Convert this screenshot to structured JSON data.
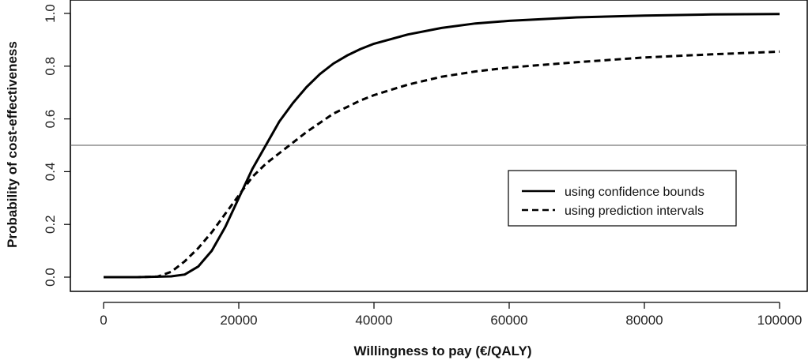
{
  "chart_data": {
    "type": "line",
    "title": "",
    "xlabel": "Willingness to pay (€/QALY)",
    "ylabel": "Probability of cost-effectiveness",
    "xlim": [
      0,
      100000
    ],
    "ylim": [
      0,
      1
    ],
    "xticks": [
      0,
      20000,
      40000,
      60000,
      80000,
      100000
    ],
    "yticks": [
      0.0,
      0.2,
      0.4,
      0.6,
      0.8,
      1.0
    ],
    "xtick_labels": [
      "0",
      "20000",
      "40000",
      "60000",
      "80000",
      "100000"
    ],
    "ytick_labels": [
      "0.0",
      "0.2",
      "0.4",
      "0.6",
      "0.8",
      "1.0"
    ],
    "grid": false,
    "legend_position": "center-right",
    "reference_line": {
      "y": 0.5,
      "color": "#aaaaaa"
    },
    "series": [
      {
        "name": "using confidence bounds",
        "style": "solid",
        "color": "#000000",
        "x": [
          0,
          5000,
          10000,
          12000,
          14000,
          16000,
          18000,
          20000,
          22000,
          24000,
          26000,
          28000,
          30000,
          32000,
          34000,
          36000,
          38000,
          40000,
          45000,
          50000,
          55000,
          60000,
          70000,
          80000,
          90000,
          100000
        ],
        "y": [
          0.0,
          0.0,
          0.003,
          0.01,
          0.04,
          0.1,
          0.19,
          0.3,
          0.41,
          0.5,
          0.59,
          0.66,
          0.72,
          0.77,
          0.81,
          0.84,
          0.865,
          0.885,
          0.92,
          0.945,
          0.962,
          0.972,
          0.985,
          0.992,
          0.996,
          0.998
        ]
      },
      {
        "name": "using prediction intervals",
        "style": "dashed",
        "color": "#000000",
        "x": [
          0,
          5000,
          8000,
          10000,
          12000,
          14000,
          16000,
          18000,
          20000,
          22000,
          24000,
          26000,
          28000,
          30000,
          32000,
          34000,
          36000,
          38000,
          40000,
          45000,
          50000,
          55000,
          60000,
          70000,
          80000,
          90000,
          100000
        ],
        "y": [
          0.0,
          0.0,
          0.002,
          0.02,
          0.06,
          0.11,
          0.17,
          0.24,
          0.31,
          0.38,
          0.43,
          0.47,
          0.51,
          0.55,
          0.585,
          0.62,
          0.645,
          0.67,
          0.69,
          0.73,
          0.76,
          0.78,
          0.795,
          0.815,
          0.833,
          0.845,
          0.855
        ]
      }
    ]
  }
}
